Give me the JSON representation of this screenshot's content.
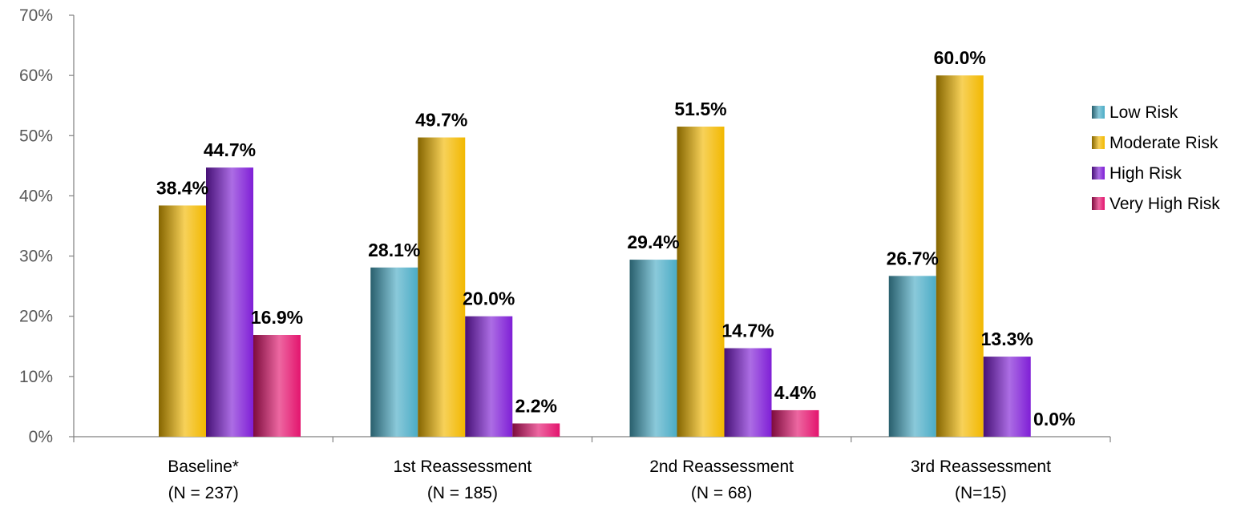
{
  "chart_data": {
    "type": "bar",
    "categories": [
      "Baseline*",
      "1st Reassessment",
      "2nd Reassessment",
      "3rd Reassessment"
    ],
    "category_sublabels": [
      "(N =  237)",
      "(N =  185)",
      "(N =  68)",
      "(N=15)"
    ],
    "series": [
      {
        "name": "Low Risk",
        "values": [
          null,
          28.1,
          29.4,
          26.7
        ],
        "labels": [
          "",
          "28.1%",
          "29.4%",
          "26.7%"
        ],
        "color": "#4bacc6"
      },
      {
        "name": "Moderate Risk",
        "values": [
          38.4,
          49.7,
          51.5,
          60.0
        ],
        "labels": [
          "38.4%",
          "49.7%",
          "51.5%",
          "60.0%"
        ],
        "color": "#f2b800"
      },
      {
        "name": "High Risk",
        "values": [
          44.7,
          20.0,
          14.7,
          13.3
        ],
        "labels": [
          "44.7%",
          "20.0%",
          "14.7%",
          "13.3%"
        ],
        "color": "#7f1fd6"
      },
      {
        "name": "Very High Risk",
        "values": [
          16.9,
          2.2,
          4.4,
          0.0
        ],
        "labels": [
          "16.9%",
          "2.2%",
          "4.4%",
          "0.0%"
        ],
        "color": "#e3156e"
      }
    ],
    "y_ticks": [
      "0%",
      "10%",
      "20%",
      "30%",
      "40%",
      "50%",
      "60%",
      "70%"
    ],
    "ylim": [
      0,
      70
    ],
    "grid": false,
    "legend_position": "right"
  }
}
